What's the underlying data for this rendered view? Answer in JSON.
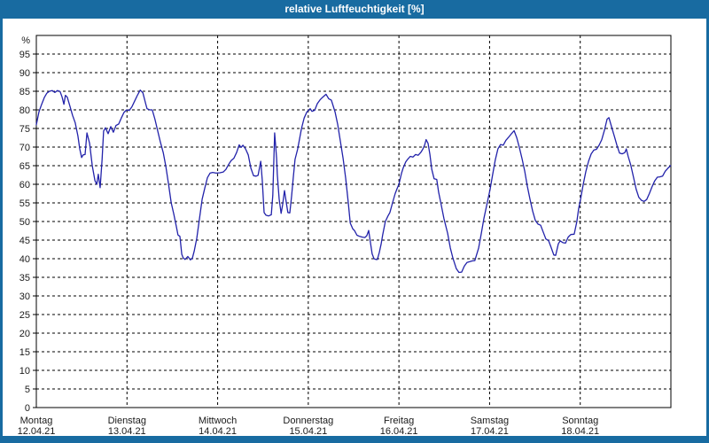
{
  "window": {
    "title": "relative Luftfeuchtigkeit [%]",
    "frame_color": "#186ba1",
    "title_text_color": "#ffffff"
  },
  "chart_data": {
    "type": "line",
    "title": "relative Luftfeuchtigkeit [%]",
    "ylabel": "%",
    "ylim": [
      0,
      100
    ],
    "y_tick_step": 5,
    "y_tick_labels": [
      "0",
      "5",
      "10",
      "15",
      "20",
      "25",
      "30",
      "35",
      "40",
      "45",
      "50",
      "55",
      "60",
      "65",
      "70",
      "75",
      "80",
      "85",
      "90",
      "95"
    ],
    "grid": true,
    "grid_style": "dashed",
    "grid_color": "#000000",
    "line_color": "#2222aa",
    "text_color": "#1a1a1a",
    "x_range_hours": [
      0,
      168
    ],
    "x_days": [
      {
        "day": "Montag",
        "date": "12.04.21"
      },
      {
        "day": "Dienstag",
        "date": "13.04.21"
      },
      {
        "day": "Mittwoch",
        "date": "14.04.21"
      },
      {
        "day": "Donnerstag",
        "date": "15.04.21"
      },
      {
        "day": "Freitag",
        "date": "16.04.21"
      },
      {
        "day": "Samstag",
        "date": "17.04.21"
      },
      {
        "day": "Sonntag",
        "date": "18.04.21"
      }
    ],
    "series": [
      {
        "name": "relative Luftfeuchtigkeit [%]",
        "points": [
          [
            0,
            76
          ],
          [
            0.7,
            79.5
          ],
          [
            1.4,
            81.5
          ],
          [
            2.1,
            83.3
          ],
          [
            2.8,
            84.5
          ],
          [
            3.5,
            85
          ],
          [
            4.2,
            85.2
          ],
          [
            4.9,
            84.7
          ],
          [
            5.6,
            85.2
          ],
          [
            6.3,
            84.9
          ],
          [
            6.8,
            83.5
          ],
          [
            7.3,
            81.5
          ],
          [
            7.7,
            83.9
          ],
          [
            8.2,
            83.4
          ],
          [
            8.9,
            81
          ],
          [
            9.6,
            78.5
          ],
          [
            10.3,
            76.5
          ],
          [
            11,
            73
          ],
          [
            11.5,
            69.5
          ],
          [
            12,
            67.2
          ],
          [
            12.4,
            67.9
          ],
          [
            12.9,
            68
          ],
          [
            13.4,
            73.8
          ],
          [
            14.1,
            71
          ],
          [
            14.8,
            65
          ],
          [
            15.5,
            61
          ],
          [
            16,
            60
          ],
          [
            16.4,
            62.7
          ],
          [
            16.9,
            59.1
          ],
          [
            17.4,
            66.7
          ],
          [
            17.8,
            74.3
          ],
          [
            18.3,
            75.2
          ],
          [
            19,
            73.6
          ],
          [
            19.7,
            75.5
          ],
          [
            20.4,
            74
          ],
          [
            21.1,
            75.8
          ],
          [
            21.8,
            76.2
          ],
          [
            22.5,
            77.8
          ],
          [
            23.2,
            79.3
          ],
          [
            23.9,
            80
          ],
          [
            24.6,
            79.8
          ],
          [
            25.3,
            80.8
          ],
          [
            26,
            82.3
          ],
          [
            26.7,
            83.8
          ],
          [
            27.5,
            85.3
          ],
          [
            28.2,
            84.6
          ],
          [
            28.9,
            81.8
          ],
          [
            29.3,
            80.3
          ],
          [
            30,
            80
          ],
          [
            30.7,
            80
          ],
          [
            31.4,
            77.5
          ],
          [
            32.1,
            74.5
          ],
          [
            32.8,
            71.5
          ],
          [
            33.6,
            68.5
          ],
          [
            34.3,
            64.7
          ],
          [
            35,
            60
          ],
          [
            35.7,
            55
          ],
          [
            36.4,
            52
          ],
          [
            37.1,
            48.5
          ],
          [
            37.5,
            46.4
          ],
          [
            38,
            46
          ],
          [
            38.5,
            41.2
          ],
          [
            38.9,
            40.2
          ],
          [
            39.4,
            39.8
          ],
          [
            40.1,
            40.6
          ],
          [
            40.8,
            39.7
          ],
          [
            41.3,
            40.1
          ],
          [
            41.8,
            42
          ],
          [
            42.5,
            45.6
          ],
          [
            43.2,
            50.8
          ],
          [
            43.9,
            56
          ],
          [
            44.6,
            59
          ],
          [
            45.3,
            61.8
          ],
          [
            46,
            63
          ],
          [
            46.7,
            63.2
          ],
          [
            47.6,
            63
          ],
          [
            48.6,
            63.1
          ],
          [
            49.5,
            63.3
          ],
          [
            50.2,
            64
          ],
          [
            50.9,
            65.3
          ],
          [
            51.6,
            66.4
          ],
          [
            52.3,
            67
          ],
          [
            53,
            68.5
          ],
          [
            53.7,
            70.6
          ],
          [
            54.2,
            69.9
          ],
          [
            54.7,
            70.5
          ],
          [
            55.4,
            69.5
          ],
          [
            56.1,
            67.9
          ],
          [
            56.8,
            64.3
          ],
          [
            57.5,
            62.3
          ],
          [
            58.2,
            62.2
          ],
          [
            58.7,
            62.4
          ],
          [
            59.4,
            66.2
          ],
          [
            59.8,
            61.2
          ],
          [
            60.3,
            52.4
          ],
          [
            60.8,
            51.7
          ],
          [
            61.5,
            51.5
          ],
          [
            62.2,
            51.8
          ],
          [
            62.6,
            57
          ],
          [
            63.1,
            73.8
          ],
          [
            63.6,
            67
          ],
          [
            63.8,
            62.6
          ],
          [
            64.3,
            56
          ],
          [
            64.8,
            52.2
          ],
          [
            65.2,
            54.5
          ],
          [
            65.7,
            58.3
          ],
          [
            66.2,
            55
          ],
          [
            66.6,
            52.4
          ],
          [
            67.1,
            52.3
          ],
          [
            67.6,
            57
          ],
          [
            68,
            61.5
          ],
          [
            68.5,
            66.7
          ],
          [
            69.2,
            69.5
          ],
          [
            70.2,
            75
          ],
          [
            70.9,
            77.8
          ],
          [
            71.6,
            79.4
          ],
          [
            72,
            79.8
          ],
          [
            72.5,
            80.3
          ],
          [
            73,
            79.6
          ],
          [
            73.7,
            79.9
          ],
          [
            74.4,
            81.7
          ],
          [
            75.1,
            82.7
          ],
          [
            75.8,
            83.4
          ],
          [
            76.7,
            84.2
          ],
          [
            77.4,
            83
          ],
          [
            78.1,
            82.6
          ],
          [
            79.1,
            79.4
          ],
          [
            79.8,
            76
          ],
          [
            80.5,
            71.5
          ],
          [
            81.2,
            67
          ],
          [
            81.9,
            61.5
          ],
          [
            82.6,
            55
          ],
          [
            83.1,
            49.6
          ],
          [
            83.8,
            48
          ],
          [
            84.2,
            47.6
          ],
          [
            84.9,
            46.3
          ],
          [
            85.6,
            46
          ],
          [
            86.3,
            45.8
          ],
          [
            87,
            45.7
          ],
          [
            87.5,
            46.2
          ],
          [
            88,
            47.6
          ],
          [
            88.5,
            44
          ],
          [
            88.9,
            41.3
          ],
          [
            89.4,
            40
          ],
          [
            89.9,
            39.8
          ],
          [
            90.3,
            39.8
          ],
          [
            90.8,
            41.7
          ],
          [
            91.3,
            44
          ],
          [
            91.7,
            46.4
          ],
          [
            92.4,
            50
          ],
          [
            93.1,
            51.5
          ],
          [
            93.6,
            52.4
          ],
          [
            94.3,
            55
          ],
          [
            95,
            57.5
          ],
          [
            95.5,
            58.8
          ],
          [
            96,
            60
          ],
          [
            96.7,
            63
          ],
          [
            97.1,
            64.3
          ],
          [
            97.8,
            66
          ],
          [
            98.3,
            66.7
          ],
          [
            99,
            67.5
          ],
          [
            99.7,
            67.3
          ],
          [
            100.4,
            68
          ],
          [
            101.1,
            67.8
          ],
          [
            101.8,
            68.6
          ],
          [
            102.3,
            69.4
          ],
          [
            102.8,
            70.5
          ],
          [
            103.2,
            72
          ],
          [
            103.7,
            71
          ],
          [
            104.2,
            68
          ],
          [
            104.7,
            64
          ],
          [
            105.3,
            61.5
          ],
          [
            106,
            61.3
          ],
          [
            106.5,
            57.9
          ],
          [
            107.2,
            54.4
          ],
          [
            107.9,
            50.8
          ],
          [
            108.9,
            46.8
          ],
          [
            109.6,
            42.9
          ],
          [
            110.3,
            40.1
          ],
          [
            111.2,
            37.3
          ],
          [
            111.9,
            36.3
          ],
          [
            112.6,
            36.4
          ],
          [
            113.3,
            38
          ],
          [
            114,
            39
          ],
          [
            114.7,
            39.2
          ],
          [
            115.4,
            39.4
          ],
          [
            116.1,
            39.5
          ],
          [
            117.1,
            42.9
          ],
          [
            117.8,
            46.8
          ],
          [
            118.5,
            50.8
          ],
          [
            119.4,
            55.2
          ],
          [
            120.1,
            58.5
          ],
          [
            120.8,
            62.5
          ],
          [
            121.5,
            66.5
          ],
          [
            122.2,
            69.5
          ],
          [
            122.9,
            70.7
          ],
          [
            123.6,
            70.5
          ],
          [
            124.3,
            71.8
          ],
          [
            125,
            72.6
          ],
          [
            125.8,
            73.6
          ],
          [
            126.5,
            74.4
          ],
          [
            127.2,
            72.5
          ],
          [
            127.9,
            69.8
          ],
          [
            128.6,
            66.8
          ],
          [
            129.3,
            63.5
          ],
          [
            130,
            59.5
          ],
          [
            130.7,
            56
          ],
          [
            131.4,
            52.8
          ],
          [
            132.1,
            50.3
          ],
          [
            132.8,
            49.3
          ],
          [
            133.5,
            49
          ],
          [
            134.2,
            47.2
          ],
          [
            134.9,
            45.3
          ],
          [
            135.6,
            44.9
          ],
          [
            136.3,
            43
          ],
          [
            137,
            41
          ],
          [
            137.5,
            40.9
          ],
          [
            138.2,
            44
          ],
          [
            138.7,
            44.8
          ],
          [
            139.4,
            44.3
          ],
          [
            140.1,
            44.2
          ],
          [
            140.8,
            45.8
          ],
          [
            141.5,
            46.5
          ],
          [
            142.4,
            46.6
          ],
          [
            143.1,
            50
          ],
          [
            143.6,
            53.6
          ],
          [
            144.1,
            56
          ],
          [
            144.8,
            60
          ],
          [
            145.5,
            63.5
          ],
          [
            146.2,
            66.2
          ],
          [
            146.9,
            68.2
          ],
          [
            147.6,
            69.2
          ],
          [
            148.3,
            69.4
          ],
          [
            149,
            70.5
          ],
          [
            149.7,
            72
          ],
          [
            150.4,
            74.5
          ],
          [
            151.1,
            77.5
          ],
          [
            151.6,
            77.9
          ],
          [
            152.3,
            75.4
          ],
          [
            153,
            73
          ],
          [
            153.7,
            70.5
          ],
          [
            154.4,
            68.4
          ],
          [
            155.1,
            68.2
          ],
          [
            155.8,
            68.5
          ],
          [
            156.2,
            69.5
          ],
          [
            156.7,
            67.5
          ],
          [
            157.4,
            65.1
          ],
          [
            158.1,
            61.9
          ],
          [
            158.8,
            58.7
          ],
          [
            159.5,
            56.5
          ],
          [
            160.2,
            55.7
          ],
          [
            160.9,
            55.4
          ],
          [
            161.6,
            55.9
          ],
          [
            162.3,
            57.5
          ],
          [
            163,
            59.3
          ],
          [
            163.7,
            60.9
          ],
          [
            164.4,
            61.9
          ],
          [
            165.1,
            62
          ],
          [
            165.8,
            62.2
          ],
          [
            166.5,
            63.5
          ],
          [
            167.2,
            64.3
          ],
          [
            167.9,
            65
          ]
        ]
      }
    ]
  }
}
